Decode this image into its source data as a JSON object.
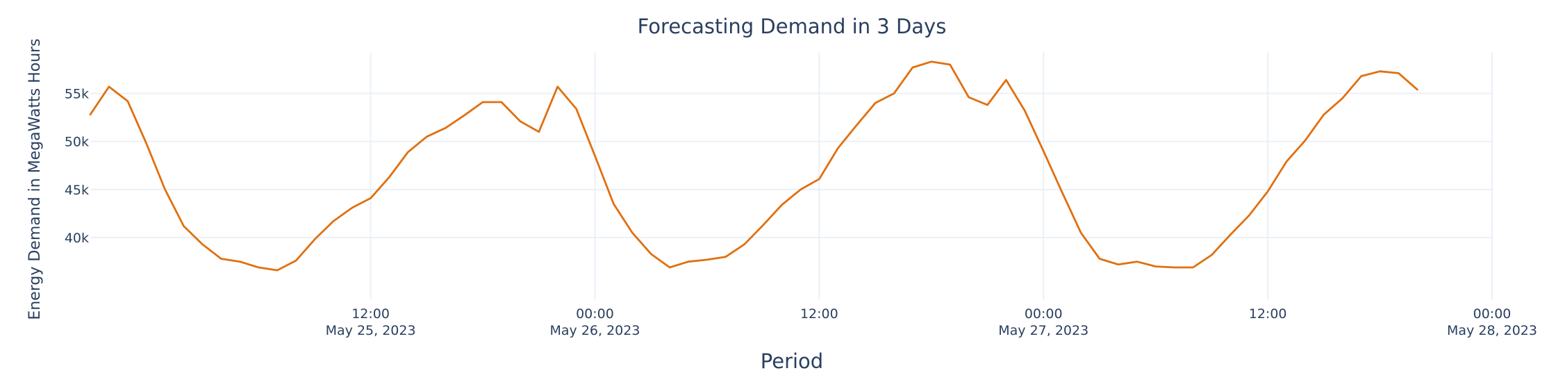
{
  "chart_data": {
    "type": "line",
    "title": "Forecasting Demand in 3 Days",
    "xlabel": "Period",
    "ylabel": "Energy Demand in MegaWatts Hours",
    "x_start": "2023-05-24 21:00",
    "x_step_hours": 1,
    "xlim": [
      "2023-05-24 21:00",
      "2023-05-28 00:00"
    ],
    "ylim": [
      33500,
      59300
    ],
    "y_ticks": [
      40000,
      45000,
      50000,
      55000
    ],
    "y_tick_labels": [
      "40k",
      "45k",
      "50k",
      "55k"
    ],
    "x_ticks": [
      {
        "time": "2023-05-25 12:00",
        "label": "12:00",
        "sublabel": "May 25, 2023"
      },
      {
        "time": "2023-05-26 00:00",
        "label": "00:00",
        "sublabel": "May 26, 2023"
      },
      {
        "time": "2023-05-26 12:00",
        "label": "12:00",
        "sublabel": ""
      },
      {
        "time": "2023-05-27 00:00",
        "label": "00:00",
        "sublabel": "May 27, 2023"
      },
      {
        "time": "2023-05-27 12:00",
        "label": "12:00",
        "sublabel": ""
      },
      {
        "time": "2023-05-28 00:00",
        "label": "00:00",
        "sublabel": "May 28, 2023"
      }
    ],
    "grid": true,
    "legend": "none",
    "series": [
      {
        "color": "#e07010",
        "values": [
          52800,
          55700,
          54200,
          49800,
          45000,
          41200,
          39300,
          37800,
          37500,
          36900,
          36600,
          37600,
          39800,
          41700,
          43100,
          44100,
          46300,
          48900,
          50500,
          51400,
          52700,
          54100,
          54100,
          52100,
          51000,
          55700,
          53400,
          48500,
          43500,
          40500,
          38300,
          36900,
          37500,
          37700,
          38000,
          39300,
          41300,
          43400,
          45000,
          46100,
          49300,
          51700,
          54000,
          55000,
          57700,
          58300,
          58000,
          54600,
          53800,
          56400,
          53200,
          49000,
          44700,
          40500,
          37800,
          37200,
          37500,
          37000,
          36900,
          36900,
          38200,
          40300,
          42300,
          44800,
          47900,
          50100,
          52800,
          54500,
          56800,
          57300,
          57100,
          55400
        ]
      }
    ]
  }
}
